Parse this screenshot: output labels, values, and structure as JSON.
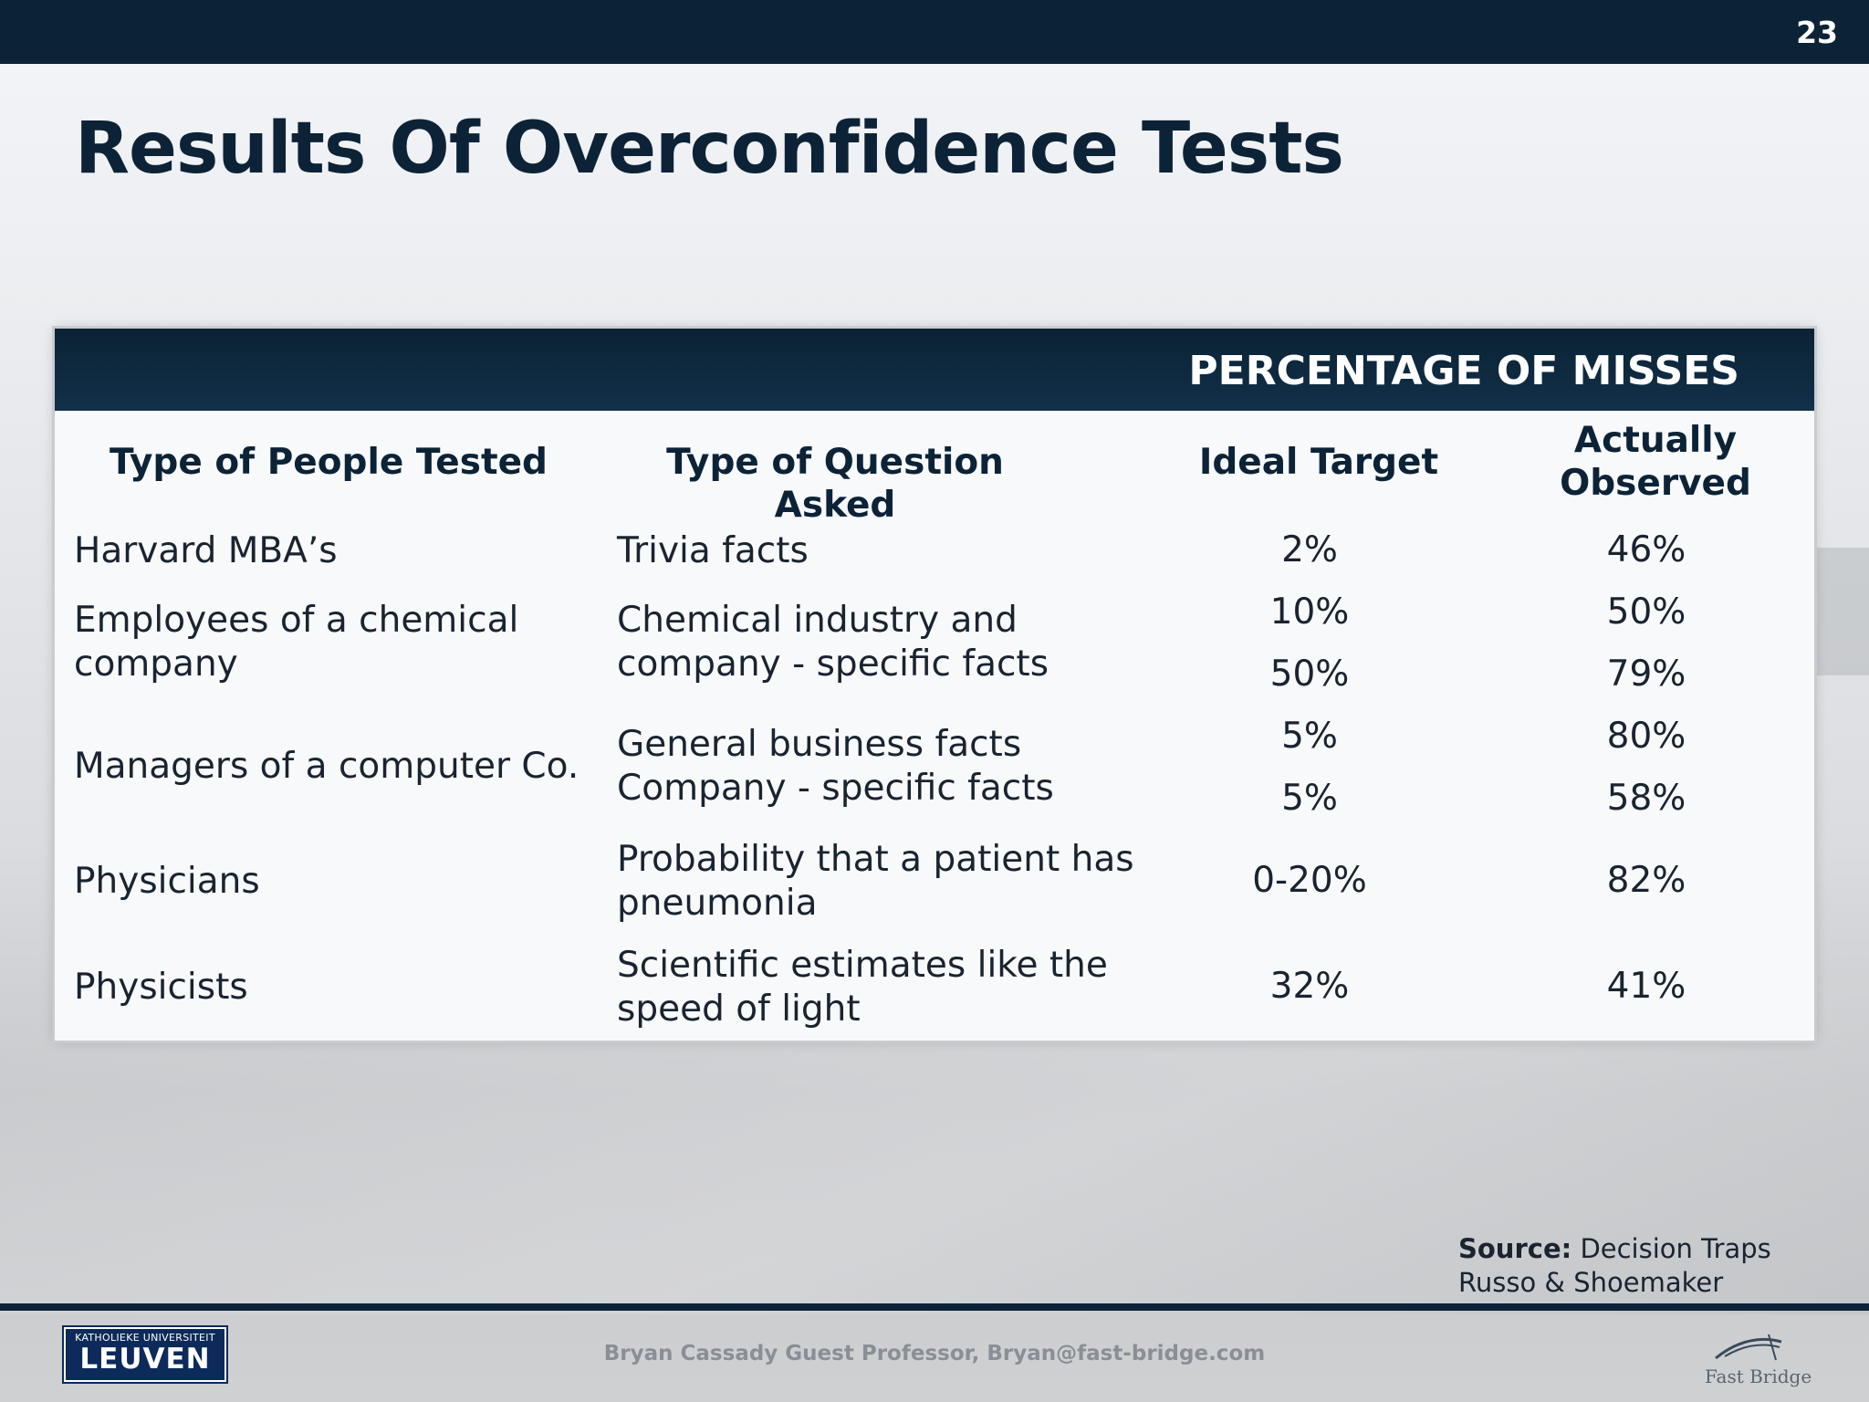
{
  "slide": {
    "page_number": "23",
    "title": "Results Of Overconfidence Tests"
  },
  "table": {
    "group_header": "PERCENTAGE OF MISSES",
    "columns": {
      "people": "Type of People Tested",
      "question": "Type of Question Asked",
      "ideal": "Ideal Target",
      "observed_1": "Actually",
      "observed_2": "Observed"
    },
    "rows": [
      {
        "people": "Harvard MBA’s",
        "question": "Trivia facts",
        "ideal": "2%",
        "observed": "46%"
      },
      {
        "people_1": "Employees of a chemical",
        "people_2": "company",
        "question_1": "Chemical industry and",
        "question_2": "company - specific facts",
        "ideal_1": "10%",
        "ideal_2": "50%",
        "observed_1": "50%",
        "observed_2": "79%"
      },
      {
        "people": "Managers of a computer Co.",
        "question_1": "General business facts",
        "question_2": "Company - specific facts",
        "ideal_1": "5%",
        "ideal_2": "5%",
        "observed_1": "80%",
        "observed_2": "58%"
      },
      {
        "people": "Physicians",
        "question_1": "Probability that a patient has",
        "question_2": "pneumonia",
        "ideal": "0-20%",
        "observed": "82%"
      },
      {
        "people": "Physicists",
        "question_1": "Scientific estimates like the",
        "question_2": "speed of light",
        "ideal": "32%",
        "observed": "41%"
      }
    ]
  },
  "source": {
    "label": "Source:",
    "line1": "Decision Traps",
    "line2": "Russo & Shoemaker"
  },
  "footer": {
    "text": "Bryan Cassady Guest Professor, Bryan@fast-bridge.com",
    "logo_small": "KATHOLIEKE UNIVERSITEIT",
    "logo_big": "LEUVEN",
    "brand": "Fast Bridge"
  }
}
